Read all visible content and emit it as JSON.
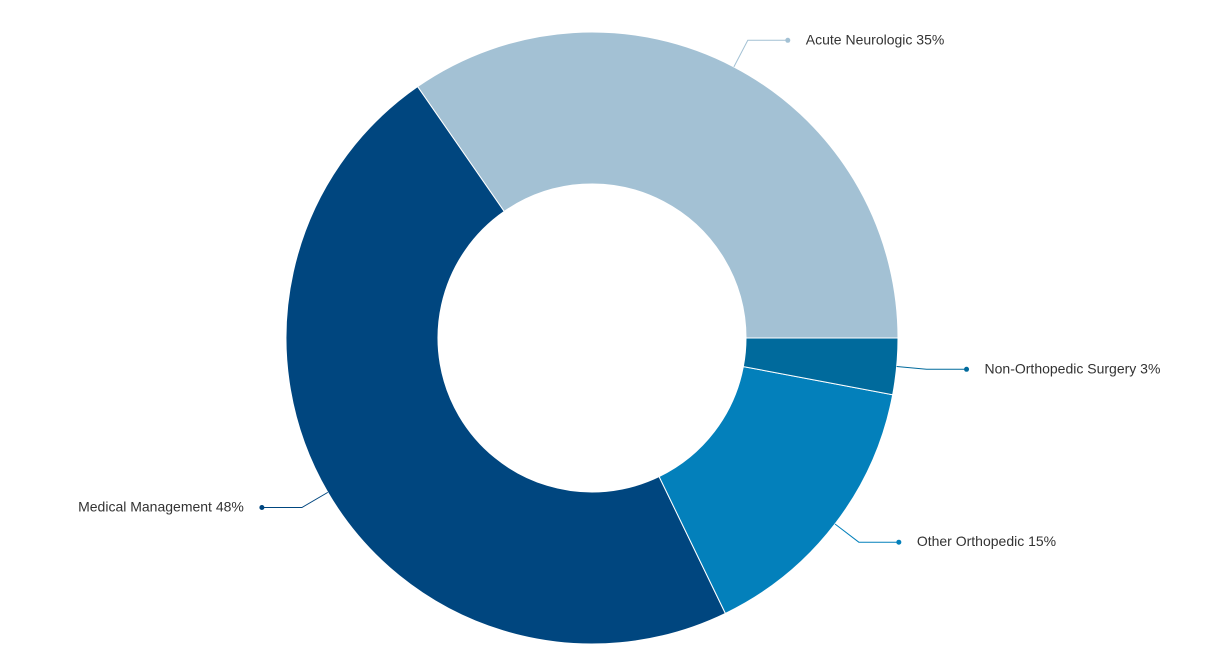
{
  "chart_data": {
    "type": "donut",
    "categories": [
      "Acute Neurologic",
      "Medical Management",
      "Other Orthopedic",
      "Non-Orthopedic Surgery"
    ],
    "values": [
      35,
      48,
      15,
      3
    ],
    "value_labels": [
      "35%",
      "48%",
      "15%",
      "3%"
    ],
    "colors": [
      "#a3c1d4",
      "#00467f",
      "#0380bb",
      "#006a9c"
    ]
  }
}
